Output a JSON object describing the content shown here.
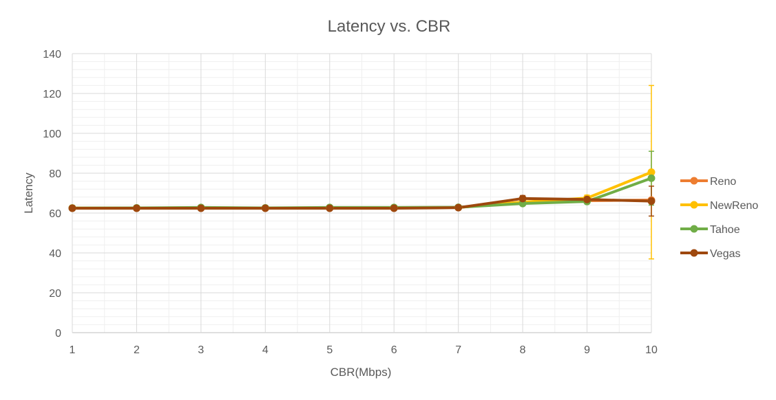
{
  "chart_data": {
    "type": "line",
    "title": "Latency vs. CBR",
    "xlabel": "CBR(Mbps)",
    "ylabel": "Latency",
    "x": [
      1,
      2,
      3,
      4,
      5,
      6,
      7,
      8,
      9,
      10
    ],
    "ylim": [
      0,
      140
    ],
    "yticks": [
      0,
      20,
      40,
      60,
      80,
      100,
      120,
      140
    ],
    "grid": true,
    "legend_position": "right",
    "series": [
      {
        "name": "Reno",
        "color": "#ED7D31",
        "values": [
          62.5,
          62.5,
          62.6,
          62.5,
          62.6,
          62.6,
          62.8,
          65.5,
          66.2,
          66.5
        ],
        "error": [
          0,
          0,
          0,
          0,
          0,
          0,
          0,
          0.5,
          1,
          1
        ]
      },
      {
        "name": "NewReno",
        "color": "#FFC000",
        "values": [
          62.5,
          62.5,
          62.7,
          62.5,
          62.7,
          62.7,
          62.8,
          65.5,
          67.5,
          80.5
        ],
        "error": [
          0,
          0,
          0,
          0,
          0,
          0,
          0,
          0.5,
          1.5,
          43.5
        ]
      },
      {
        "name": "Tahoe",
        "color": "#70AD47",
        "values": [
          62.5,
          62.6,
          62.8,
          62.6,
          62.8,
          62.8,
          62.9,
          64.8,
          65.8,
          77.5
        ],
        "error": [
          0,
          0,
          0,
          0,
          0,
          0,
          0,
          0.8,
          0.8,
          13.5
        ]
      },
      {
        "name": "Vegas",
        "color": "#9E480E",
        "values": [
          62.4,
          62.4,
          62.4,
          62.4,
          62.4,
          62.4,
          62.7,
          67.3,
          66.8,
          66.0
        ],
        "error": [
          0,
          0,
          0,
          0,
          0,
          0,
          0,
          1.5,
          0.8,
          7.5
        ]
      }
    ]
  }
}
